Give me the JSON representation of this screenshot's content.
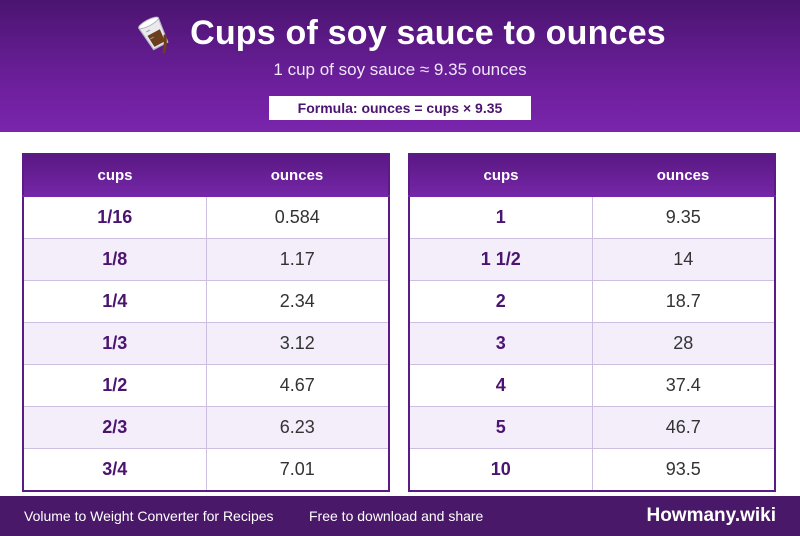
{
  "header": {
    "title": "Cups of soy sauce to ounces",
    "subtitle": "1 cup of soy sauce ≈ 9.35 ounces",
    "formula": "Formula: ounces = cups × 9.35",
    "icon": "measuring-cup-icon"
  },
  "table_left": {
    "col1": "cups",
    "col2": "ounces",
    "rows": [
      {
        "cups": "1/16",
        "ounces": "0.584"
      },
      {
        "cups": "1/8",
        "ounces": "1.17"
      },
      {
        "cups": "1/4",
        "ounces": "2.34"
      },
      {
        "cups": "1/3",
        "ounces": "3.12"
      },
      {
        "cups": "1/2",
        "ounces": "4.67"
      },
      {
        "cups": "2/3",
        "ounces": "6.23"
      },
      {
        "cups": "3/4",
        "ounces": "7.01"
      }
    ]
  },
  "table_right": {
    "col1": "cups",
    "col2": "ounces",
    "rows": [
      {
        "cups": "1",
        "ounces": "9.35"
      },
      {
        "cups": "1 1/2",
        "ounces": "14"
      },
      {
        "cups": "2",
        "ounces": "18.7"
      },
      {
        "cups": "3",
        "ounces": "28"
      },
      {
        "cups": "4",
        "ounces": "37.4"
      },
      {
        "cups": "5",
        "ounces": "46.7"
      },
      {
        "cups": "10",
        "ounces": "93.5"
      }
    ]
  },
  "footer": {
    "left": "Volume to Weight Converter for Recipes",
    "middle": "Free to download and share",
    "brand": "Howmany.wiki"
  },
  "colors": {
    "primary": "#6b1f9a",
    "dark": "#4a1868",
    "row_alt": "#f3eefa"
  }
}
